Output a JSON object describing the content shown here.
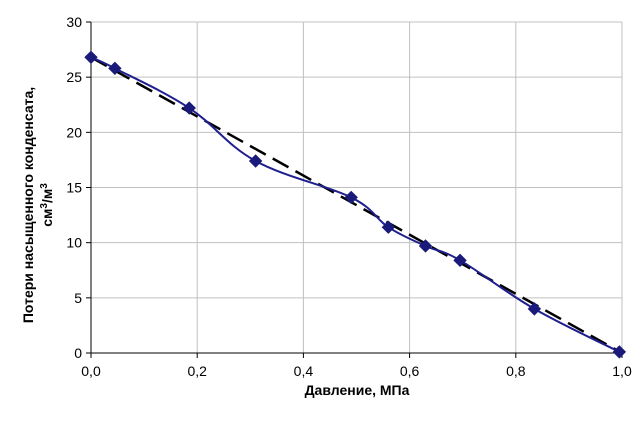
{
  "chart_data": {
    "type": "line",
    "xlabel": "Давление, МПа",
    "ylabel_line1": "Потери насыщенного конденсата,",
    "ylabel_line2_base": "см",
    "ylabel_line2_sup1": "3",
    "ylabel_line2_mid": "/м",
    "ylabel_line2_sup2": "3",
    "xlim": [
      0,
      1
    ],
    "ylim": [
      0,
      30
    ],
    "x_ticks": [
      0,
      0.2,
      0.4,
      0.6,
      0.8,
      1.0
    ],
    "x_tick_labels": [
      "0,0",
      "0,2",
      "0,4",
      "0,6",
      "0,8",
      "1,0"
    ],
    "y_ticks": [
      0,
      5,
      10,
      15,
      20,
      25,
      30
    ],
    "y_tick_labels": [
      "0",
      "5",
      "10",
      "15",
      "20",
      "25",
      "30"
    ],
    "grid": true,
    "colors": {
      "series": "#1f1f8f",
      "marker": "#1a1a7a",
      "trend": "#000000",
      "grid": "#c0c0c0"
    },
    "series": [
      {
        "x": [
          0.0,
          0.045,
          0.185,
          0.31,
          0.49,
          0.56,
          0.63,
          0.695,
          0.835,
          0.995
        ],
        "y": [
          26.8,
          25.8,
          22.2,
          17.4,
          14.1,
          11.4,
          9.7,
          8.4,
          4.0,
          0.1
        ]
      }
    ],
    "trendline": {
      "x": [
        0.0,
        1.0
      ],
      "y": [
        26.8,
        0.0
      ],
      "style": "dashed"
    }
  }
}
